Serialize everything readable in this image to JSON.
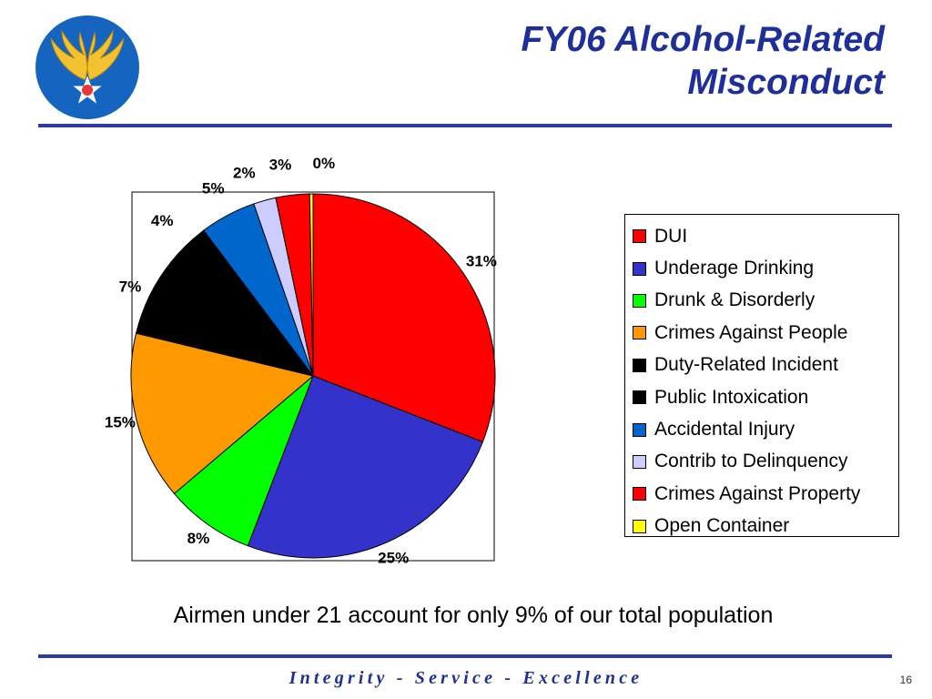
{
  "slide": {
    "title_line1": "FY06 Alcohol-Related",
    "title_line2": "Misconduct",
    "caption": "Airmen under 21 account for only 9% of our total population",
    "footer": "Integrity - Service - Excellence",
    "page_number": "16",
    "logo": "air-force-hap-arnold-wings-star-logo",
    "accent_color": "#1f2f9a"
  },
  "chart_data": {
    "type": "pie",
    "title": "",
    "legend_position": "right",
    "categories": [
      "DUI",
      "Underage Drinking",
      "Drunk & Disorderly",
      "Crimes Against People",
      "Duty-Related Incident",
      "Public Intoxication",
      "Accidental Injury",
      "Contrib to Delinquency",
      "Crimes Against Property",
      "Open Container"
    ],
    "values": [
      31,
      25,
      8,
      15,
      7,
      4,
      5,
      2,
      3,
      0.3
    ],
    "data_labels": [
      "31%",
      "25%",
      "8%",
      "15%",
      "7%",
      "4%",
      "5%",
      "2%",
      "3%",
      "0%"
    ],
    "colors": [
      "#ff0000",
      "#3333cc",
      "#00ff00",
      "#ff9900",
      "#000000",
      "#000000",
      "#0066cc",
      "#ccccff",
      "#ff0000",
      "#ffff00"
    ]
  }
}
